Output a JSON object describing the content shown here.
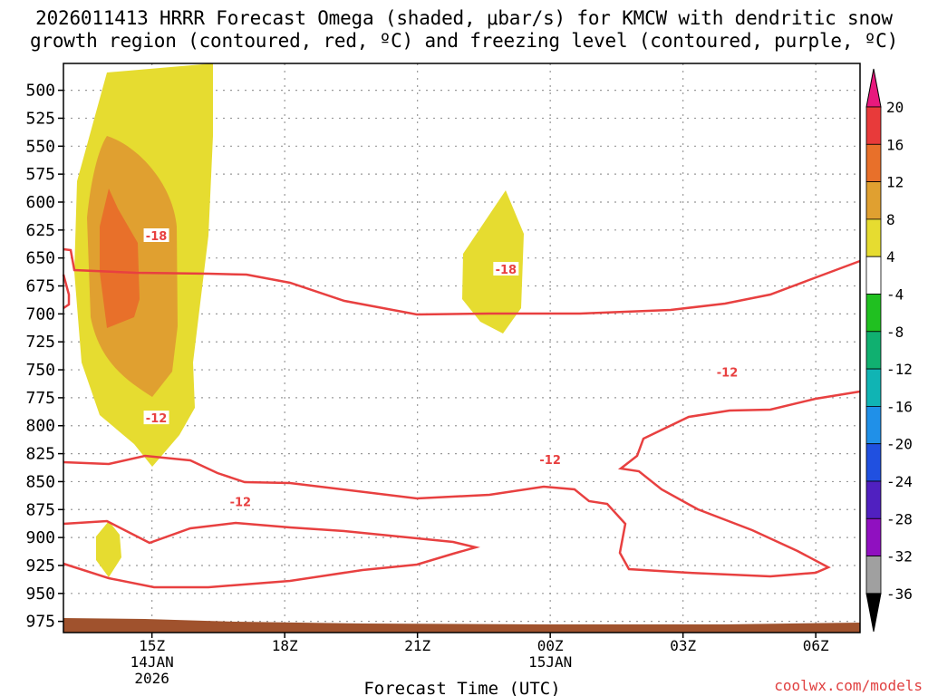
{
  "chart_data": {
    "type": "contour",
    "title_line1": "2026011413 HRRR Forecast Omega (shaded, μbar/s) for KMCW with dendritic snow",
    "title_line2": "growth region (contoured, red, ºC) and freezing level (contoured, purple, ºC)",
    "xlabel": "Forecast Time (UTC)",
    "credit": "coolwx.com/models",
    "x_ticks": [
      {
        "label": "15Z",
        "sub1": "14JAN",
        "sub2": "2026",
        "hour": 0
      },
      {
        "label": "18Z",
        "sub1": "",
        "sub2": "",
        "hour": 3
      },
      {
        "label": "21Z",
        "sub1": "",
        "sub2": "",
        "hour": 6
      },
      {
        "label": "00Z",
        "sub1": "15JAN",
        "sub2": "",
        "hour": 9
      },
      {
        "label": "03Z",
        "sub1": "",
        "sub2": "",
        "hour": 12
      },
      {
        "label": "06Z",
        "sub1": "",
        "sub2": "",
        "hour": 15
      }
    ],
    "xlim_hours": [
      -2,
      16
    ],
    "y_ticks": [
      "500",
      "525",
      "550",
      "575",
      "600",
      "625",
      "650",
      "675",
      "700",
      "725",
      "750",
      "775",
      "800",
      "825",
      "850",
      "875",
      "900",
      "925",
      "950",
      "975"
    ],
    "ylim_mb": [
      476,
      985
    ],
    "colorbar": {
      "labels": [
        "20",
        "16",
        "12",
        "8",
        "4",
        "-4",
        "-8",
        "-12",
        "-16",
        "-20",
        "-24",
        "-28",
        "-32",
        "-36"
      ],
      "colors": [
        "#e8197d",
        "#e83a3a",
        "#e8702a",
        "#e0a030",
        "#e6dc30",
        "#ffffff",
        "#20c020",
        "#10b070",
        "#10b4b4",
        "#2090e8",
        "#2050e0",
        "#5020c0",
        "#9010c0",
        "#a0a0a0",
        "#000000"
      ]
    },
    "contour_labels": [
      {
        "text": "-18",
        "hour": 0.1,
        "mb": 630
      },
      {
        "text": "-18",
        "hour": 8.0,
        "mb": 660
      },
      {
        "text": "-12",
        "hour": 0.1,
        "mb": 793
      },
      {
        "text": "-12",
        "hour": 2.0,
        "mb": 868
      },
      {
        "text": "-12",
        "hour": 9.0,
        "mb": 830
      },
      {
        "text": "-12",
        "hour": 13.0,
        "mb": 752
      }
    ]
  }
}
